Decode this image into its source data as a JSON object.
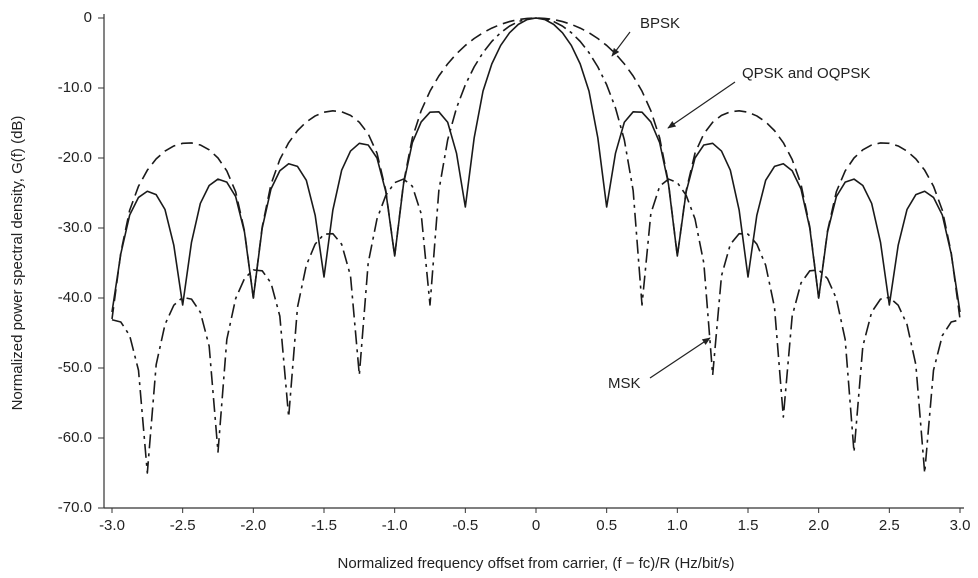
{
  "chart_data": {
    "type": "line",
    "x_label": "Normalized frequency offset from carrier, (f − fc)/R (Hz/bit/s)",
    "y_label": "Normalized power spectral density, G(f) (dB)",
    "xlim": [
      -3,
      3
    ],
    "ylim": [
      -70,
      0
    ],
    "xticks": [
      {
        "value": -3,
        "label": "-3.0"
      },
      {
        "value": -2.5,
        "label": "-2.5"
      },
      {
        "value": -2,
        "label": "-2.0"
      },
      {
        "value": -1.5,
        "label": "-1.5"
      },
      {
        "value": -1,
        "label": "-1.0"
      },
      {
        "value": -0.5,
        "label": "-0.5"
      },
      0,
      {
        "value": 0.5,
        "label": "0.5"
      },
      {
        "value": 1,
        "label": "1.0"
      },
      {
        "value": 1.5,
        "label": "1.5"
      },
      {
        "value": 2,
        "label": "2.0"
      },
      {
        "value": 2.5,
        "label": "2.5"
      },
      {
        "value": 3,
        "label": "3.0"
      }
    ],
    "yticks": [
      0,
      {
        "value": -10,
        "label": "-10.0"
      },
      {
        "value": -20,
        "label": "-20.0"
      },
      {
        "value": -30,
        "label": "-30.0"
      },
      {
        "value": -40,
        "label": "-40.0"
      },
      {
        "value": -50,
        "label": "-50.0"
      },
      {
        "value": -60,
        "label": "-60.0"
      },
      {
        "value": -70,
        "label": "-70.0"
      }
    ],
    "x": [
      -3,
      -2.9375,
      -2.875,
      -2.8125,
      -2.75,
      -2.6875,
      -2.625,
      -2.5625,
      -2.5,
      -2.4375,
      -2.375,
      -2.3125,
      -2.25,
      -2.1875,
      -2.125,
      -2.0625,
      -2,
      -1.9375,
      -1.875,
      -1.8125,
      -1.75,
      -1.6875,
      -1.625,
      -1.5625,
      -1.5,
      -1.4375,
      -1.375,
      -1.3125,
      -1.25,
      -1.1875,
      -1.125,
      -1.0625,
      -1,
      -0.9375,
      -0.875,
      -0.8125,
      -0.75,
      -0.6875,
      -0.625,
      -0.5625,
      -0.5,
      -0.4375,
      -0.375,
      -0.3125,
      -0.25,
      -0.1875,
      -0.125,
      -0.0625,
      0,
      0.0625,
      0.125,
      0.1875,
      0.25,
      0.3125,
      0.375,
      0.4375,
      0.5,
      0.5625,
      0.625,
      0.6875,
      0.75,
      0.8125,
      0.875,
      0.9375,
      1,
      1.0625,
      1.125,
      1.1875,
      1.25,
      1.3125,
      1.375,
      1.4375,
      1.5,
      1.5625,
      1.625,
      1.6875,
      1.75,
      1.8125,
      1.875,
      1.9375,
      2,
      2.0625,
      2.125,
      2.1875,
      2.25,
      2.3125,
      2.375,
      2.4375,
      2.5,
      2.5625,
      2.625,
      2.6875,
      2.75,
      2.8125,
      2.875,
      2.9375,
      3
    ],
    "series": [
      {
        "name": "BPSK",
        "color": "#1a1a1a",
        "style": "dashed",
        "values": [
          -43,
          -33.5,
          -27.46,
          -24.03,
          -21.74,
          -20.13,
          -19.01,
          -18.28,
          -17.9,
          -17.85,
          -18.14,
          -18.83,
          -20,
          -21.85,
          -24.83,
          -30.43,
          -40,
          -29.88,
          -23.75,
          -20.21,
          -17.81,
          -16.09,
          -14.85,
          -13.99,
          -13.46,
          -13.26,
          -13.4,
          -13.91,
          -14.89,
          -16.54,
          -19.31,
          -24.66,
          -34,
          -23.58,
          -17.13,
          -13.24,
          -10.45,
          -8.29,
          -6.55,
          -5.11,
          -3.92,
          -2.93,
          -2.11,
          -1.44,
          -0.91,
          -0.51,
          -0.22,
          -0.06,
          0,
          -0.06,
          -0.22,
          -0.51,
          -0.91,
          -1.44,
          -2.11,
          -2.93,
          -3.92,
          -5.11,
          -6.55,
          -8.29,
          -10.45,
          -13.24,
          -17.13,
          -23.58,
          -34,
          -24.66,
          -19.31,
          -16.54,
          -14.89,
          -13.91,
          -13.4,
          -13.26,
          -13.46,
          -13.99,
          -14.85,
          -16.09,
          -17.81,
          -20.21,
          -23.75,
          -29.88,
          -40,
          -30.43,
          -24.83,
          -21.85,
          -20,
          -18.83,
          -18.14,
          -17.85,
          -17.9,
          -18.28,
          -19.01,
          -20.13,
          -21.74,
          -24.03,
          -27.46,
          -33.5,
          -43
        ]
      },
      {
        "name": "QPSK and OQPSK",
        "color": "#1a1a1a",
        "style": "solid",
        "values": [
          -42,
          -33.67,
          -28.15,
          -25.63,
          -24.75,
          -25.24,
          -27.36,
          -32.48,
          -41,
          -32.04,
          -26.49,
          -23.93,
          -23.01,
          -23.45,
          -25.52,
          -30.59,
          -40,
          -30.05,
          -24.43,
          -21.82,
          -20.82,
          -21.2,
          -23.19,
          -28.18,
          -37,
          -27.46,
          -21.74,
          -19.01,
          -17.9,
          -18.14,
          -20,
          -24.83,
          -34,
          -23.75,
          -17.81,
          -14.85,
          -13.46,
          -13.4,
          -14.89,
          -19.31,
          -27,
          -17.13,
          -10.45,
          -6.55,
          -3.92,
          -2.11,
          -0.91,
          -0.22,
          0,
          -0.22,
          -0.91,
          -2.11,
          -3.92,
          -6.55,
          -10.45,
          -17.13,
          -27,
          -19.31,
          -14.89,
          -13.4,
          -13.46,
          -14.85,
          -17.81,
          -23.75,
          -34,
          -24.83,
          -20,
          -18.14,
          -17.9,
          -19.01,
          -21.74,
          -27.46,
          -37,
          -28.18,
          -23.19,
          -21.2,
          -20.82,
          -21.82,
          -24.43,
          -30.05,
          -40,
          -30.59,
          -25.52,
          -23.45,
          -23.01,
          -23.93,
          -26.49,
          -32.04,
          -41,
          -32.48,
          -27.36,
          -25.24,
          -24.75,
          -25.63,
          -28.15,
          -33.67,
          -42
        ]
      },
      {
        "name": "MSK",
        "color": "#1a1a1a",
        "style": "dash-dot",
        "values": [
          -43.11,
          -43.43,
          -45.37,
          -50.32,
          -65,
          -49.52,
          -43.78,
          -41.03,
          -39.91,
          -40.16,
          -42.02,
          -46.89,
          -62,
          -45.91,
          -40.07,
          -37.22,
          -35.99,
          -36.11,
          -37.86,
          -42.59,
          -57,
          -41.32,
          -35.32,
          -32.3,
          -30.88,
          -30.81,
          -32.33,
          -36.83,
          -51,
          -35.02,
          -28.7,
          -25.33,
          -23.52,
          -23.01,
          -24.03,
          -27.95,
          -41,
          -24.68,
          -17.41,
          -12.86,
          -9.54,
          -6.98,
          -4.95,
          -3.34,
          -2.1,
          -1.16,
          -0.51,
          -0.13,
          0,
          -0.13,
          -0.51,
          -1.16,
          -2.1,
          -3.34,
          -4.95,
          -6.98,
          -9.54,
          -12.86,
          -17.41,
          -24.68,
          -41,
          -27.95,
          -24.03,
          -23.01,
          -23.52,
          -25.33,
          -28.7,
          -35.02,
          -51,
          -36.83,
          -32.33,
          -30.81,
          -30.88,
          -32.3,
          -35.32,
          -41.32,
          -57,
          -42.59,
          -37.86,
          -36.11,
          -35.99,
          -37.22,
          -40.07,
          -45.91,
          -62,
          -46.89,
          -42.02,
          -40.16,
          -39.91,
          -41.03,
          -43.78,
          -49.52,
          -65,
          -50.32,
          -45.37,
          -43.43,
          -43.11
        ]
      }
    ]
  }
}
